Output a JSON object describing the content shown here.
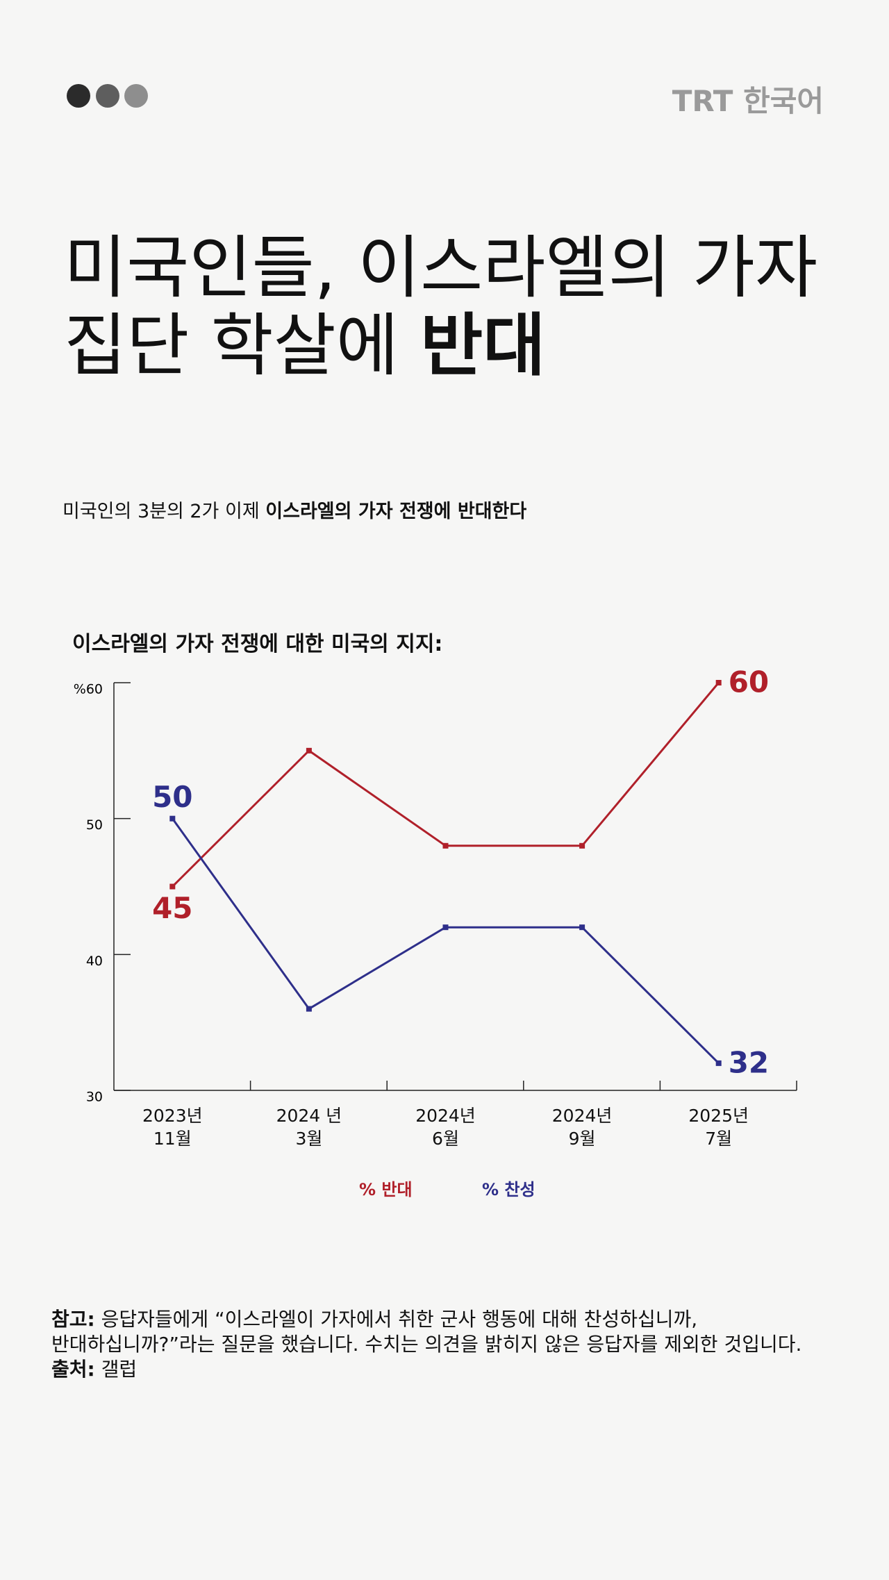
{
  "brand": "TRT 한국어",
  "headline": {
    "line1": "미국인들, 이스라엘의 가자",
    "line2": "집단 학살에",
    "emphasis": "반대"
  },
  "subtitle": {
    "text": "미국인의 3분의 2가 이제",
    "emphasis": "이스라엘의 가자 전쟁에 반대한다"
  },
  "chart_data": {
    "type": "line",
    "title": "이스라엘의 가자 전쟁에 대한 미국의 지지:",
    "categories": [
      "2023년\n11월",
      "2024 년\n3월",
      "2024년\n6월",
      "2024년\n9월",
      "2025년\n7월"
    ],
    "series": [
      {
        "name": "% 반대",
        "color": "#b0202a",
        "values": [
          45,
          55,
          48,
          48,
          60
        ]
      },
      {
        "name": "% 찬성",
        "color": "#2e2f8a",
        "values": [
          50,
          36,
          42,
          42,
          32
        ]
      }
    ],
    "ylim": [
      30,
      60
    ],
    "yticks": [
      30,
      40,
      50,
      {
        "value": 60,
        "label": "%60"
      }
    ],
    "grid": false
  },
  "note": {
    "label": "참고:",
    "lines": [
      "응답자들에게 “이스라엘이 가자에서 취한 군사 행동에 대해 찬성하십니까,",
      "반대하십니까?”라는 질문을 했습니다. 수치는 의견을 밝히지 않은 응답자를 제외한 것입니다."
    ]
  },
  "source": {
    "label": "출처:",
    "text": "갤럽"
  }
}
